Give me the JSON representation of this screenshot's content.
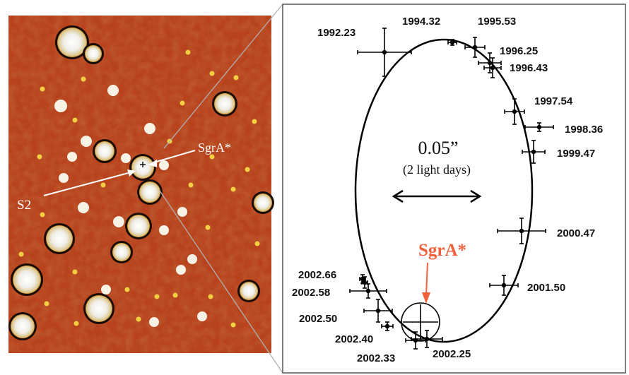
{
  "image_panel": {
    "labels": {
      "star": "S2",
      "black_hole": "SgrA*"
    }
  },
  "orbit_panel": {
    "scale_value": "0.05”",
    "scale_note": "(2 light days)",
    "center_label": "SgrA*",
    "accent_color": "#f0603a",
    "epochs": [
      {
        "label": "1992.23"
      },
      {
        "label": "1994.32"
      },
      {
        "label": "1995.53"
      },
      {
        "label": "1996.25"
      },
      {
        "label": "1996.43"
      },
      {
        "label": "1997.54"
      },
      {
        "label": "1998.36"
      },
      {
        "label": "1999.47"
      },
      {
        "label": "2000.47"
      },
      {
        "label": "2001.50"
      },
      {
        "label": "2002.25"
      },
      {
        "label": "2002.33"
      },
      {
        "label": "2002.40"
      },
      {
        "label": "2002.50"
      },
      {
        "label": "2002.58"
      },
      {
        "label": "2002.66"
      }
    ]
  },
  "colors": {
    "field_background": "#b4401c",
    "star": "#f4f4f0",
    "faint_star": "#f2d040"
  }
}
